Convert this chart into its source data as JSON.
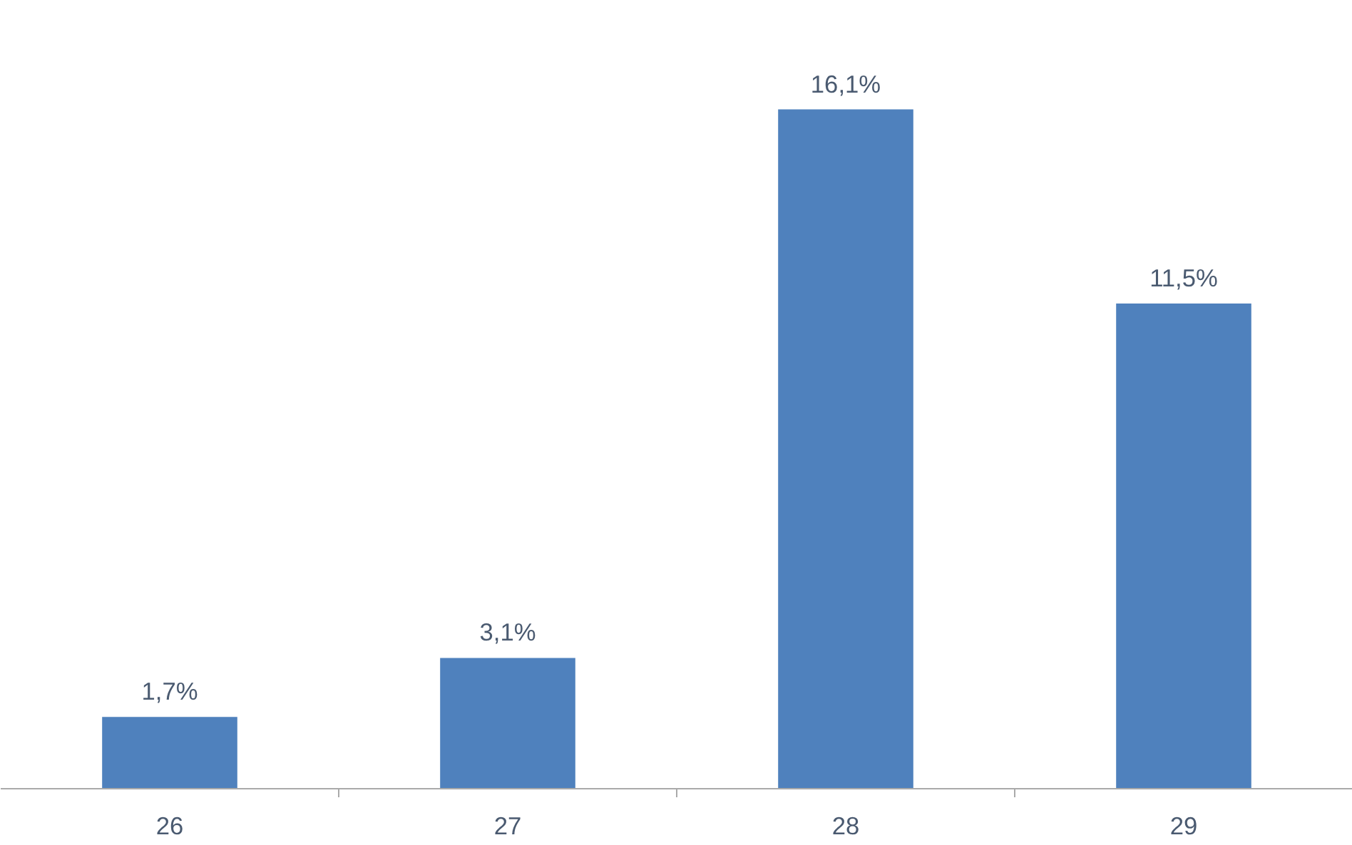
{
  "chart_data": {
    "type": "bar",
    "categories": [
      "26",
      "27",
      "28",
      "29"
    ],
    "values": [
      1.7,
      3.1,
      16.1,
      11.5
    ],
    "value_labels": [
      "1,7%",
      "3,1%",
      "16,1%",
      "11,5%"
    ],
    "color": "#4f81bd"
  }
}
